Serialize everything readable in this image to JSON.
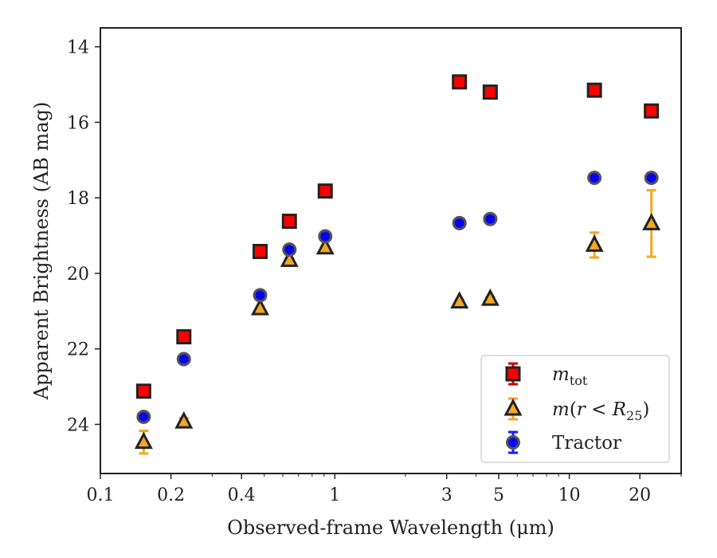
{
  "chart_data": {
    "type": "scatter",
    "xlabel": "Observed-frame Wavelength (μm)",
    "ylabel": "Apparent Brightness (AB mag)",
    "xscale": "log",
    "xlim": [
      0.1,
      30
    ],
    "ylim": [
      25.3,
      13.5
    ],
    "y_inverted": true,
    "x_ticks": [
      {
        "value": 0.1,
        "label": "0.1"
      },
      {
        "value": 0.2,
        "label": "0.2"
      },
      {
        "value": 0.4,
        "label": "0.4"
      },
      {
        "value": 1,
        "label": "1"
      },
      {
        "value": 3,
        "label": "3"
      },
      {
        "value": 5,
        "label": "5"
      },
      {
        "value": 10,
        "label": "10"
      },
      {
        "value": 20,
        "label": "20"
      }
    ],
    "y_ticks": [
      14,
      16,
      18,
      20,
      22,
      24
    ],
    "grid": false,
    "legend_position": "bottom-right",
    "series": [
      {
        "name": "m_tot",
        "legend_html": "<tspan font-style='italic'>m</tspan><tspan font-size='16' dy='6'>tot</tspan>",
        "marker": "square",
        "fill": "#ff0000",
        "edge": "#222222",
        "errcolor": "#cc0000",
        "points": [
          {
            "x": 0.153,
            "y": 23.12,
            "err": 0.08
          },
          {
            "x": 0.227,
            "y": 21.68,
            "err": 0.08
          },
          {
            "x": 0.48,
            "y": 19.42,
            "err": 0.06
          },
          {
            "x": 0.64,
            "y": 18.62,
            "err": 0.06
          },
          {
            "x": 0.91,
            "y": 17.82,
            "err": 0.06
          },
          {
            "x": 3.4,
            "y": 14.93,
            "err": 0.05
          },
          {
            "x": 4.6,
            "y": 15.2,
            "err": 0.05
          },
          {
            "x": 12.8,
            "y": 15.15,
            "err": 0.05
          },
          {
            "x": 22.4,
            "y": 15.7,
            "err": 0.05
          }
        ]
      },
      {
        "name": "m(r < R_25)",
        "legend_html": "<tspan font-style='italic'>m</tspan>(<tspan font-style='italic'>r</tspan> &lt; <tspan font-style='italic'>R</tspan><tspan font-size='16' dy='6'>25</tspan><tspan dy='-6'>)</tspan>",
        "marker": "triangle",
        "fill": "#f5a623",
        "edge": "#222222",
        "errcolor": "#f5a623",
        "points": [
          {
            "x": 0.153,
            "y": 24.47,
            "err": 0.3
          },
          {
            "x": 0.227,
            "y": 23.93,
            "err": 0.1
          },
          {
            "x": 0.48,
            "y": 20.93,
            "err": 0.05
          },
          {
            "x": 0.64,
            "y": 19.65,
            "err": 0.05
          },
          {
            "x": 0.91,
            "y": 19.32,
            "err": 0.05
          },
          {
            "x": 3.4,
            "y": 20.75,
            "err": 0.05
          },
          {
            "x": 4.6,
            "y": 20.68,
            "err": 0.05
          },
          {
            "x": 12.8,
            "y": 19.25,
            "err": 0.33
          },
          {
            "x": 22.4,
            "y": 18.68,
            "err": 0.88
          }
        ]
      },
      {
        "name": "Tractor",
        "legend_html": "Tractor",
        "marker": "circle",
        "fill": "#0000ee",
        "edge": "#555555",
        "errcolor": "#1a1aff",
        "points": [
          {
            "x": 0.153,
            "y": 23.8,
            "err": 0.05
          },
          {
            "x": 0.227,
            "y": 22.27,
            "err": 0.05
          },
          {
            "x": 0.48,
            "y": 20.58,
            "err": 0.05
          },
          {
            "x": 0.64,
            "y": 19.37,
            "err": 0.05
          },
          {
            "x": 0.91,
            "y": 19.02,
            "err": 0.05
          },
          {
            "x": 3.4,
            "y": 18.67,
            "err": 0.05
          },
          {
            "x": 4.6,
            "y": 18.56,
            "err": 0.05
          },
          {
            "x": 12.8,
            "y": 17.47,
            "err": 0.05
          },
          {
            "x": 22.4,
            "y": 17.47,
            "err": 0.05
          }
        ]
      }
    ]
  }
}
